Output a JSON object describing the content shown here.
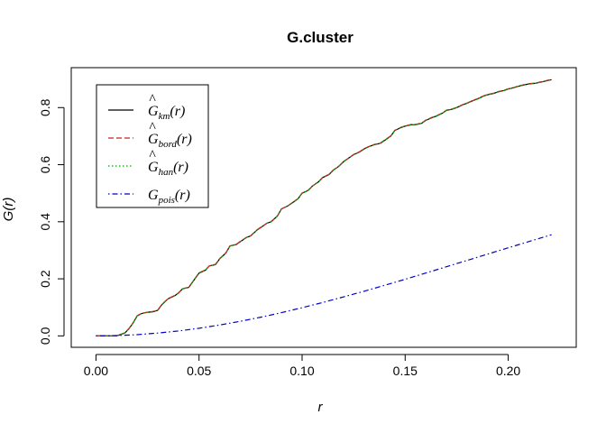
{
  "chart_data": {
    "type": "line",
    "title": "G.cluster",
    "xlabel": "r",
    "ylabel": "G(r)",
    "xlim": [
      -0.012,
      0.233
    ],
    "ylim": [
      -0.04,
      0.94
    ],
    "xticks": [
      0.0,
      0.05,
      0.1,
      0.15,
      0.2
    ],
    "xtick_labels": [
      "0.00",
      "0.05",
      "0.10",
      "0.15",
      "0.20"
    ],
    "yticks": [
      0.0,
      0.2,
      0.4,
      0.6,
      0.8
    ],
    "ytick_labels": [
      "0.0",
      "0.2",
      "0.4",
      "0.6",
      "0.8"
    ],
    "grid": false,
    "legend_position": "top-left",
    "series": [
      {
        "name": "G_km(r)",
        "legend_base": "G",
        "legend_hat": true,
        "legend_sub": "km",
        "legend_arg": "(r)",
        "color": "#000000",
        "dash": "solid",
        "x": [
          0.0,
          0.01,
          0.014,
          0.016,
          0.018,
          0.02,
          0.022,
          0.025,
          0.028,
          0.03,
          0.032,
          0.035,
          0.038,
          0.04,
          0.042,
          0.045,
          0.048,
          0.05,
          0.053,
          0.055,
          0.058,
          0.06,
          0.063,
          0.065,
          0.068,
          0.07,
          0.073,
          0.075,
          0.078,
          0.08,
          0.083,
          0.085,
          0.088,
          0.09,
          0.093,
          0.095,
          0.098,
          0.1,
          0.103,
          0.105,
          0.108,
          0.11,
          0.113,
          0.115,
          0.118,
          0.12,
          0.123,
          0.125,
          0.128,
          0.13,
          0.133,
          0.135,
          0.138,
          0.14,
          0.143,
          0.145,
          0.148,
          0.15,
          0.153,
          0.155,
          0.158,
          0.16,
          0.163,
          0.165,
          0.168,
          0.17,
          0.173,
          0.175,
          0.178,
          0.18,
          0.183,
          0.185,
          0.188,
          0.19,
          0.193,
          0.195,
          0.198,
          0.2,
          0.203,
          0.205,
          0.208,
          0.21,
          0.213,
          0.215,
          0.218,
          0.221
        ],
        "y": [
          0.0,
          0.0,
          0.01,
          0.025,
          0.045,
          0.07,
          0.078,
          0.083,
          0.085,
          0.09,
          0.11,
          0.13,
          0.14,
          0.15,
          0.165,
          0.17,
          0.2,
          0.22,
          0.23,
          0.245,
          0.25,
          0.27,
          0.29,
          0.315,
          0.32,
          0.33,
          0.345,
          0.35,
          0.37,
          0.38,
          0.395,
          0.4,
          0.42,
          0.445,
          0.455,
          0.465,
          0.48,
          0.5,
          0.51,
          0.525,
          0.54,
          0.555,
          0.565,
          0.58,
          0.595,
          0.61,
          0.625,
          0.635,
          0.645,
          0.655,
          0.665,
          0.67,
          0.675,
          0.685,
          0.7,
          0.72,
          0.73,
          0.735,
          0.74,
          0.74,
          0.745,
          0.755,
          0.765,
          0.77,
          0.78,
          0.79,
          0.795,
          0.8,
          0.81,
          0.815,
          0.825,
          0.83,
          0.84,
          0.845,
          0.85,
          0.855,
          0.86,
          0.865,
          0.87,
          0.875,
          0.88,
          0.883,
          0.885,
          0.888,
          0.893,
          0.898
        ]
      },
      {
        "name": "G_bord(r)",
        "legend_base": "G",
        "legend_hat": true,
        "legend_sub": "bord",
        "legend_arg": "(r)",
        "color": "#cc2222",
        "dash": "dashed",
        "x": [
          0.0,
          0.01,
          0.014,
          0.016,
          0.018,
          0.02,
          0.022,
          0.025,
          0.028,
          0.03,
          0.032,
          0.035,
          0.038,
          0.04,
          0.042,
          0.045,
          0.048,
          0.05,
          0.053,
          0.055,
          0.058,
          0.06,
          0.063,
          0.065,
          0.068,
          0.07,
          0.073,
          0.075,
          0.078,
          0.08,
          0.083,
          0.085,
          0.088,
          0.09,
          0.093,
          0.095,
          0.098,
          0.1,
          0.103,
          0.105,
          0.108,
          0.11,
          0.113,
          0.115,
          0.118,
          0.12,
          0.123,
          0.125,
          0.128,
          0.13,
          0.133,
          0.135,
          0.138,
          0.14,
          0.143,
          0.145,
          0.148,
          0.15,
          0.153,
          0.155,
          0.158,
          0.16,
          0.163,
          0.165,
          0.168,
          0.17,
          0.173,
          0.175,
          0.178,
          0.18,
          0.183,
          0.185,
          0.188,
          0.19,
          0.193,
          0.195,
          0.198,
          0.2,
          0.203,
          0.205,
          0.208,
          0.21,
          0.213,
          0.215,
          0.218,
          0.221
        ],
        "y": [
          0.0,
          0.0,
          0.011,
          0.026,
          0.046,
          0.071,
          0.079,
          0.083,
          0.086,
          0.091,
          0.111,
          0.131,
          0.141,
          0.151,
          0.165,
          0.171,
          0.201,
          0.221,
          0.231,
          0.245,
          0.251,
          0.271,
          0.291,
          0.315,
          0.321,
          0.331,
          0.345,
          0.351,
          0.371,
          0.381,
          0.395,
          0.401,
          0.421,
          0.445,
          0.455,
          0.466,
          0.481,
          0.501,
          0.511,
          0.525,
          0.541,
          0.556,
          0.566,
          0.581,
          0.596,
          0.611,
          0.625,
          0.636,
          0.646,
          0.656,
          0.666,
          0.671,
          0.676,
          0.686,
          0.701,
          0.721,
          0.731,
          0.736,
          0.741,
          0.741,
          0.746,
          0.756,
          0.766,
          0.771,
          0.781,
          0.791,
          0.796,
          0.801,
          0.811,
          0.816,
          0.826,
          0.831,
          0.841,
          0.846,
          0.851,
          0.856,
          0.861,
          0.866,
          0.871,
          0.876,
          0.881,
          0.884,
          0.886,
          0.889,
          0.894,
          0.899
        ]
      },
      {
        "name": "G_han(r)",
        "legend_base": "G",
        "legend_hat": true,
        "legend_sub": "han",
        "legend_arg": "(r)",
        "color": "#00aa00",
        "dash": "dotted",
        "x": [
          0.0,
          0.01,
          0.014,
          0.016,
          0.018,
          0.02,
          0.022,
          0.025,
          0.028,
          0.03,
          0.032,
          0.035,
          0.038,
          0.04,
          0.042,
          0.045,
          0.048,
          0.05,
          0.053,
          0.055,
          0.058,
          0.06,
          0.063,
          0.065,
          0.068,
          0.07,
          0.073,
          0.075,
          0.078,
          0.08,
          0.083,
          0.085,
          0.088,
          0.09,
          0.093,
          0.095,
          0.098,
          0.1,
          0.103,
          0.105,
          0.108,
          0.11,
          0.113,
          0.115,
          0.118,
          0.12,
          0.123,
          0.125,
          0.128,
          0.13,
          0.133,
          0.135,
          0.138,
          0.14,
          0.143,
          0.145,
          0.148,
          0.15,
          0.153,
          0.155,
          0.158,
          0.16,
          0.163,
          0.165,
          0.168,
          0.17,
          0.173,
          0.175,
          0.178,
          0.18,
          0.183,
          0.185,
          0.188,
          0.19,
          0.193,
          0.195,
          0.198,
          0.2,
          0.203,
          0.205,
          0.208,
          0.21,
          0.213,
          0.215,
          0.218,
          0.221
        ],
        "y": [
          0.0,
          0.0,
          0.01,
          0.025,
          0.045,
          0.07,
          0.078,
          0.083,
          0.085,
          0.09,
          0.11,
          0.13,
          0.14,
          0.15,
          0.165,
          0.17,
          0.2,
          0.22,
          0.23,
          0.245,
          0.25,
          0.27,
          0.29,
          0.315,
          0.32,
          0.33,
          0.345,
          0.35,
          0.37,
          0.38,
          0.395,
          0.4,
          0.42,
          0.445,
          0.455,
          0.465,
          0.48,
          0.5,
          0.51,
          0.525,
          0.54,
          0.555,
          0.565,
          0.58,
          0.595,
          0.61,
          0.625,
          0.635,
          0.645,
          0.655,
          0.665,
          0.67,
          0.675,
          0.685,
          0.7,
          0.72,
          0.73,
          0.735,
          0.74,
          0.74,
          0.745,
          0.755,
          0.765,
          0.77,
          0.78,
          0.79,
          0.795,
          0.8,
          0.81,
          0.815,
          0.825,
          0.83,
          0.84,
          0.845,
          0.85,
          0.855,
          0.86,
          0.865,
          0.87,
          0.875,
          0.88,
          0.883,
          0.885,
          0.888,
          0.893,
          0.898
        ]
      },
      {
        "name": "G_pois(r)",
        "legend_base": "G",
        "legend_hat": false,
        "legend_sub": "pois",
        "legend_arg": "(r)",
        "color": "#0000cc",
        "dash": "dotdash",
        "x": [
          0.0,
          0.01,
          0.02,
          0.03,
          0.04,
          0.05,
          0.06,
          0.07,
          0.08,
          0.09,
          0.1,
          0.11,
          0.12,
          0.13,
          0.14,
          0.15,
          0.16,
          0.17,
          0.18,
          0.19,
          0.2,
          0.21,
          0.221
        ],
        "y": [
          0.0,
          0.0011,
          0.0044,
          0.0098,
          0.0173,
          0.0267,
          0.038,
          0.051,
          0.0655,
          0.0815,
          0.0987,
          0.117,
          0.1363,
          0.1564,
          0.1772,
          0.1985,
          0.2202,
          0.2422,
          0.2644,
          0.2866,
          0.3087,
          0.3306,
          0.3545
        ]
      }
    ]
  }
}
